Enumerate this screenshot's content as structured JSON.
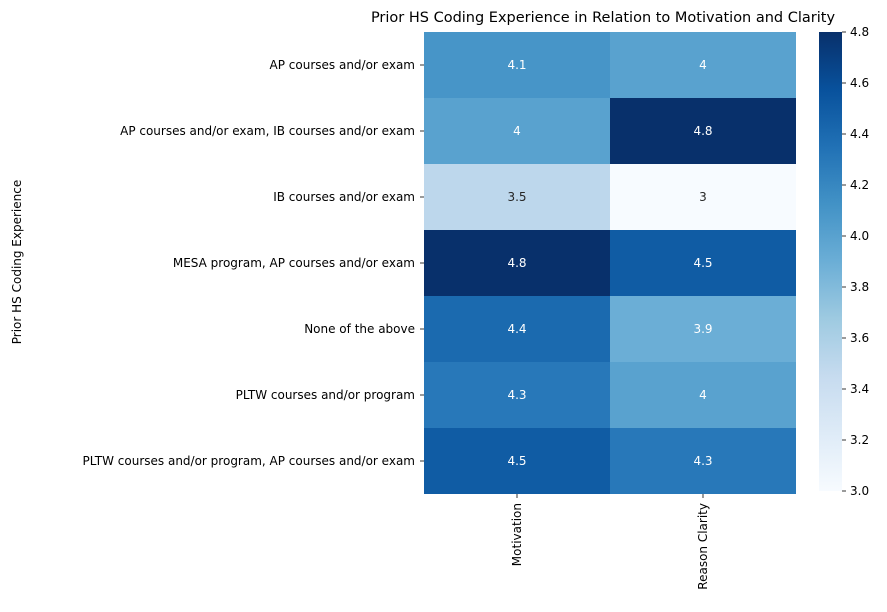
{
  "chart_data": {
    "type": "heatmap",
    "title": "Prior HS Coding Experience in Relation to Motivation and Clarity",
    "ylabel": "Prior HS Coding Experience",
    "xlabel": "",
    "rows": [
      "AP courses and/or exam",
      "AP courses and/or exam, IB courses and/or exam",
      "IB courses and/or exam",
      "MESA program, AP courses and/or exam",
      "None of the above",
      "PLTW courses and/or program",
      "PLTW courses and/or program, AP courses and/or exam"
    ],
    "columns": [
      "Motivation",
      "Reason Clarity"
    ],
    "values": [
      [
        4.1,
        4.0
      ],
      [
        4.0,
        4.8
      ],
      [
        3.5,
        3.0
      ],
      [
        4.8,
        4.5
      ],
      [
        4.4,
        3.9
      ],
      [
        4.3,
        4.0
      ],
      [
        4.5,
        4.3
      ]
    ],
    "annotations": [
      [
        "4.1",
        "4"
      ],
      [
        "4",
        "4.8"
      ],
      [
        "3.5",
        "3"
      ],
      [
        "4.8",
        "4.5"
      ],
      [
        "4.4",
        "3.9"
      ],
      [
        "4.3",
        "4"
      ],
      [
        "4.5",
        "4.3"
      ]
    ],
    "colorbar": {
      "colormap": "Blues",
      "range": [
        3.0,
        4.8
      ],
      "ticks": [
        "3.0",
        "3.2",
        "3.4",
        "3.6",
        "3.8",
        "4.0",
        "4.2",
        "4.4",
        "4.6",
        "4.8"
      ]
    }
  }
}
